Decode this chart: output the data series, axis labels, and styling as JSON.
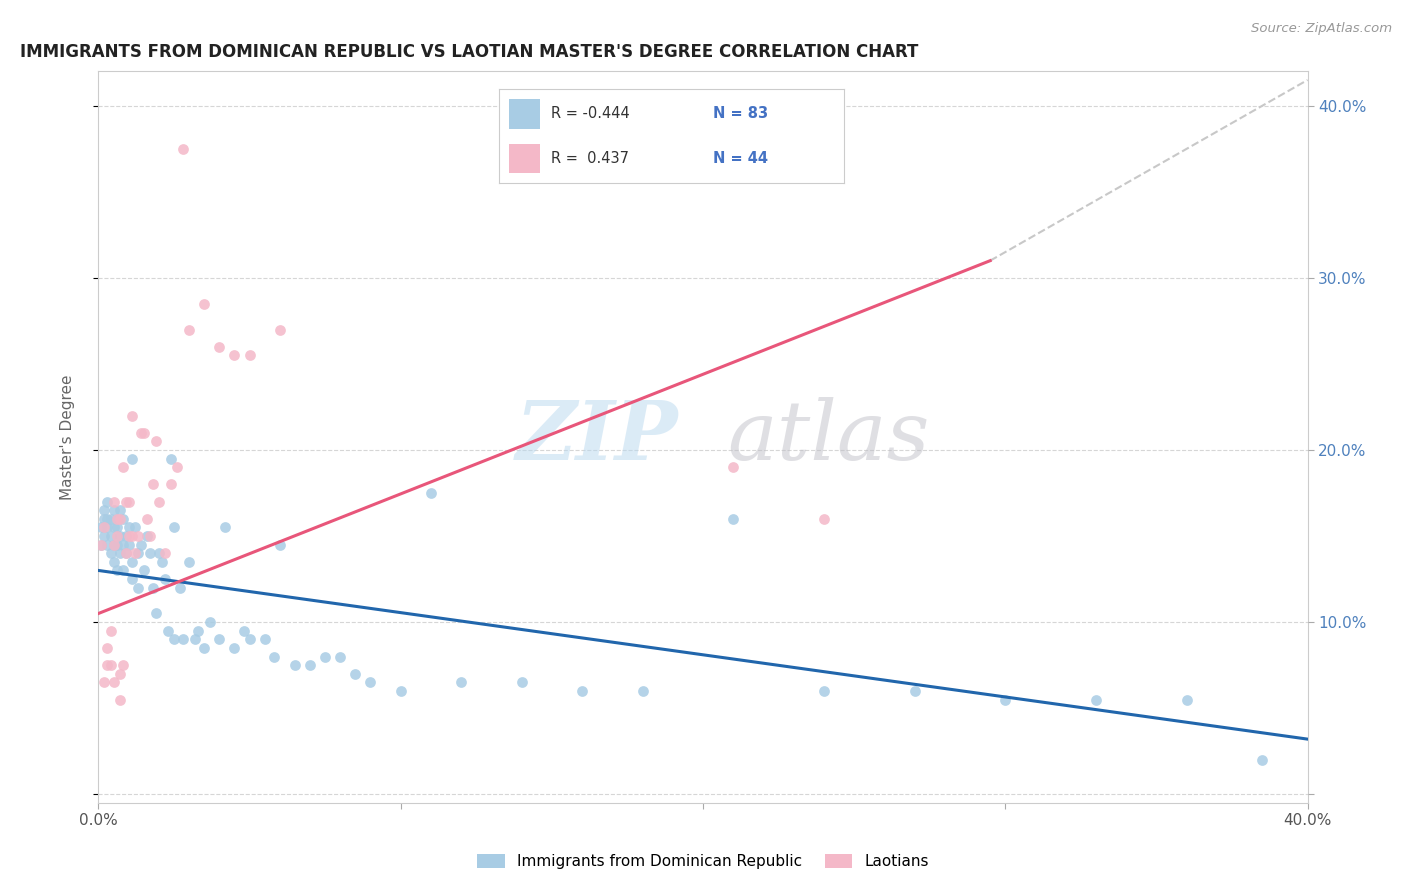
{
  "title": "IMMIGRANTS FROM DOMINICAN REPUBLIC VS LAOTIAN MASTER'S DEGREE CORRELATION CHART",
  "source": "Source: ZipAtlas.com",
  "ylabel": "Master's Degree",
  "xlim": [
    0.0,
    0.4
  ],
  "ylim": [
    -0.005,
    0.42
  ],
  "ytick_values": [
    0.0,
    0.1,
    0.2,
    0.3,
    0.4
  ],
  "ytick_labels": [
    "",
    "10.0%",
    "20.0%",
    "30.0%",
    "40.0%"
  ],
  "xtick_values": [
    0.0,
    0.1,
    0.2,
    0.3,
    0.4
  ],
  "xtick_labels": [
    "0.0%",
    "",
    "",
    "",
    "40.0%"
  ],
  "legend_r1": "R = -0.444",
  "legend_n1": "N = 83",
  "legend_r2": "R =  0.437",
  "legend_n2": "N = 44",
  "blue_color": "#a8cce4",
  "pink_color": "#f4b8c8",
  "line_blue": "#2166ac",
  "line_pink": "#e8567a",
  "line_dashed_color": "#c8c8c8",
  "blue_scatter_x": [
    0.001,
    0.001,
    0.002,
    0.002,
    0.002,
    0.003,
    0.003,
    0.003,
    0.003,
    0.004,
    0.004,
    0.004,
    0.005,
    0.005,
    0.005,
    0.005,
    0.006,
    0.006,
    0.006,
    0.006,
    0.007,
    0.007,
    0.007,
    0.008,
    0.008,
    0.008,
    0.009,
    0.009,
    0.01,
    0.01,
    0.011,
    0.011,
    0.012,
    0.013,
    0.013,
    0.014,
    0.015,
    0.016,
    0.017,
    0.018,
    0.019,
    0.02,
    0.021,
    0.022,
    0.023,
    0.025,
    0.025,
    0.027,
    0.028,
    0.03,
    0.032,
    0.033,
    0.035,
    0.037,
    0.04,
    0.042,
    0.045,
    0.048,
    0.05,
    0.055,
    0.058,
    0.06,
    0.065,
    0.07,
    0.075,
    0.08,
    0.085,
    0.09,
    0.1,
    0.11,
    0.12,
    0.14,
    0.16,
    0.18,
    0.21,
    0.24,
    0.27,
    0.3,
    0.33,
    0.36,
    0.385,
    0.011,
    0.024
  ],
  "blue_scatter_y": [
    0.145,
    0.155,
    0.16,
    0.15,
    0.165,
    0.155,
    0.145,
    0.16,
    0.17,
    0.14,
    0.16,
    0.15,
    0.145,
    0.155,
    0.135,
    0.165,
    0.145,
    0.155,
    0.13,
    0.16,
    0.14,
    0.15,
    0.165,
    0.145,
    0.16,
    0.13,
    0.15,
    0.14,
    0.155,
    0.145,
    0.135,
    0.125,
    0.155,
    0.14,
    0.12,
    0.145,
    0.13,
    0.15,
    0.14,
    0.12,
    0.105,
    0.14,
    0.135,
    0.125,
    0.095,
    0.155,
    0.09,
    0.12,
    0.09,
    0.135,
    0.09,
    0.095,
    0.085,
    0.1,
    0.09,
    0.155,
    0.085,
    0.095,
    0.09,
    0.09,
    0.08,
    0.145,
    0.075,
    0.075,
    0.08,
    0.08,
    0.07,
    0.065,
    0.06,
    0.175,
    0.065,
    0.065,
    0.06,
    0.06,
    0.16,
    0.06,
    0.06,
    0.055,
    0.055,
    0.055,
    0.02,
    0.195,
    0.195
  ],
  "pink_scatter_x": [
    0.001,
    0.002,
    0.002,
    0.003,
    0.003,
    0.004,
    0.004,
    0.005,
    0.005,
    0.005,
    0.006,
    0.006,
    0.007,
    0.007,
    0.007,
    0.008,
    0.008,
    0.009,
    0.009,
    0.01,
    0.01,
    0.011,
    0.011,
    0.012,
    0.013,
    0.014,
    0.015,
    0.016,
    0.017,
    0.018,
    0.019,
    0.02,
    0.022,
    0.024,
    0.026,
    0.028,
    0.03,
    0.035,
    0.04,
    0.045,
    0.05,
    0.06,
    0.21,
    0.24
  ],
  "pink_scatter_y": [
    0.145,
    0.155,
    0.065,
    0.075,
    0.085,
    0.095,
    0.075,
    0.065,
    0.17,
    0.145,
    0.15,
    0.16,
    0.16,
    0.07,
    0.055,
    0.19,
    0.075,
    0.17,
    0.14,
    0.17,
    0.15,
    0.15,
    0.22,
    0.14,
    0.15,
    0.21,
    0.21,
    0.16,
    0.15,
    0.18,
    0.205,
    0.17,
    0.14,
    0.18,
    0.19,
    0.375,
    0.27,
    0.285,
    0.26,
    0.255,
    0.255,
    0.27,
    0.19,
    0.16
  ],
  "blue_line_x": [
    0.0,
    0.4
  ],
  "blue_line_y": [
    0.13,
    0.032
  ],
  "pink_line_x": [
    0.0,
    0.295
  ],
  "pink_line_y": [
    0.105,
    0.31
  ],
  "dashed_line_x": [
    0.295,
    0.4
  ],
  "dashed_line_y": [
    0.31,
    0.415
  ],
  "background_color": "#ffffff",
  "grid_color": "#cccccc"
}
